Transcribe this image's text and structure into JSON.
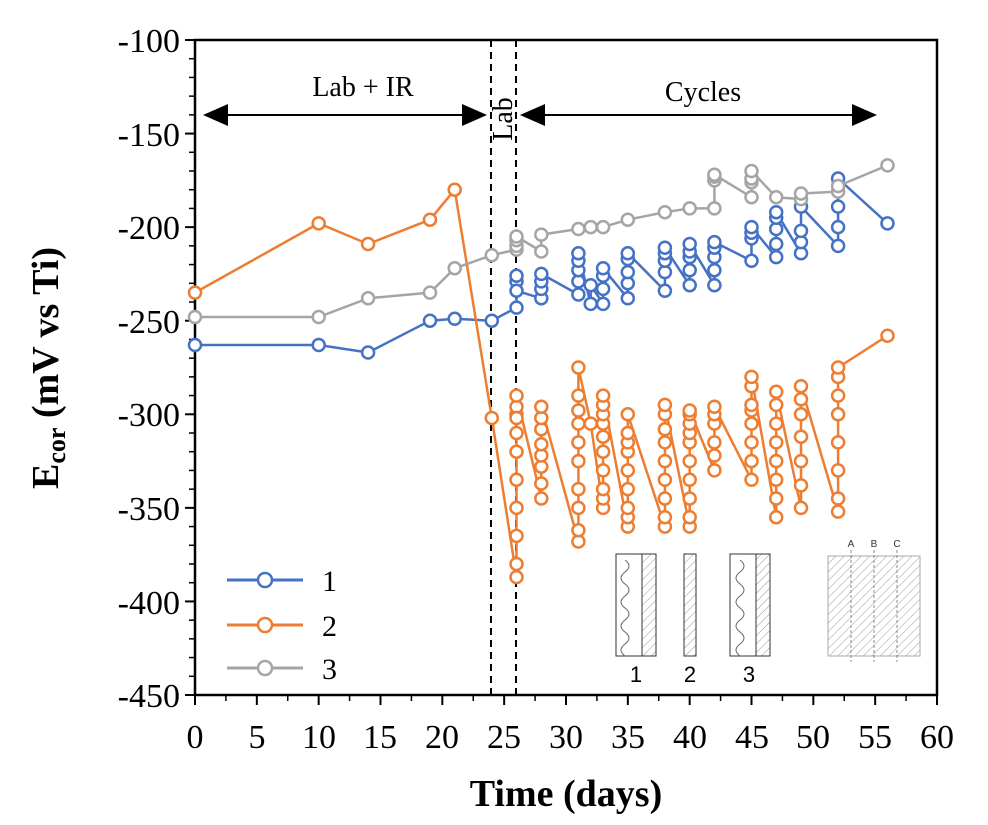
{
  "chart_data": {
    "type": "line",
    "title": "",
    "xlabel": "Time (days)",
    "ylabel": "E",
    "ylabel_sub": "cor",
    "ylabel_rest": " (mV vs Ti)",
    "xlim": [
      0,
      60
    ],
    "ylim": [
      -450,
      -100
    ],
    "xticks": [
      "0",
      "5",
      "10",
      "15",
      "20",
      "25",
      "30",
      "35",
      "40",
      "45",
      "50",
      "55",
      "60"
    ],
    "yticks": [
      "-100",
      "-150",
      "-200",
      "-250",
      "-300",
      "-350",
      "-400",
      "-450"
    ],
    "grid": false,
    "legend_position": "bottom-left",
    "annotations": {
      "lab_ir": "Lab + IR",
      "lab": "Lab",
      "cycles": "Cycles",
      "vlines": [
        24,
        26
      ]
    },
    "inset": {
      "labels": [
        "1",
        "2",
        "3"
      ],
      "section_labels": [
        "A",
        "B",
        "C"
      ]
    },
    "series": [
      {
        "name": "1",
        "color": "#4472C4",
        "x": [
          0,
          10,
          14,
          19,
          21,
          24,
          26,
          26,
          26,
          26,
          28,
          28,
          28,
          28,
          31,
          31,
          31,
          31,
          31,
          32,
          32,
          33,
          33,
          33,
          33,
          35,
          35,
          35,
          35,
          35,
          38,
          38,
          38,
          38,
          38,
          40,
          40,
          40,
          40,
          40,
          42,
          42,
          42,
          42,
          42,
          45,
          45,
          45,
          45,
          47,
          47,
          47,
          47,
          47,
          49,
          49,
          49,
          49,
          52,
          52,
          52,
          52,
          56
        ],
        "y": [
          -263,
          -263,
          -267,
          -250,
          -249,
          -250,
          -243,
          -229,
          -226,
          -234,
          -238,
          -233,
          -229,
          -225,
          -236,
          -229,
          -223,
          -218,
          -214,
          -241,
          -231,
          -241,
          -233,
          -226,
          -222,
          -238,
          -230,
          -224,
          -217,
          -214,
          -234,
          -224,
          -218,
          -214,
          -211,
          -231,
          -223,
          -216,
          -213,
          -209,
          -231,
          -223,
          -216,
          -211,
          -208,
          -218,
          -206,
          -203,
          -200,
          -216,
          -209,
          -201,
          -195,
          -192,
          -214,
          -208,
          -202,
          -189,
          -210,
          -200,
          -189,
          -174,
          -198
        ]
      },
      {
        "name": "2",
        "color": "#ED7D31",
        "x": [
          0,
          10,
          14,
          19,
          21,
          24,
          26,
          26,
          26,
          26,
          26,
          26,
          26,
          26,
          26,
          26,
          26,
          28,
          28,
          28,
          28,
          28,
          28,
          28,
          28,
          31,
          31,
          31,
          31,
          31,
          31,
          31,
          31,
          31,
          31,
          32,
          33,
          33,
          33,
          33,
          33,
          33,
          33,
          33,
          33,
          33,
          35,
          35,
          35,
          35,
          35,
          35,
          35,
          35,
          35,
          38,
          38,
          38,
          38,
          38,
          38,
          38,
          38,
          38,
          40,
          40,
          40,
          40,
          40,
          40,
          40,
          40,
          40,
          40,
          42,
          42,
          42,
          42,
          42,
          42,
          45,
          45,
          45,
          45,
          45,
          45,
          45,
          45,
          47,
          47,
          47,
          47,
          47,
          47,
          47,
          47,
          49,
          49,
          49,
          49,
          49,
          49,
          49,
          52,
          52,
          52,
          52,
          52,
          52,
          52,
          52,
          56
        ],
        "y": [
          -235,
          -198,
          -209,
          -196,
          -180,
          -302,
          -387,
          -380,
          -365,
          -350,
          -335,
          -320,
          -310,
          -300,
          -296,
          -302,
          -290,
          -345,
          -337,
          -328,
          -322,
          -316,
          -308,
          -302,
          -296,
          -368,
          -362,
          -350,
          -340,
          -325,
          -315,
          -305,
          -298,
          -290,
          -275,
          -305,
          -350,
          -345,
          -340,
          -330,
          -320,
          -312,
          -305,
          -300,
          -295,
          -290,
          -360,
          -355,
          -350,
          -340,
          -330,
          -320,
          -315,
          -310,
          -300,
          -360,
          -355,
          -345,
          -335,
          -325,
          -315,
          -308,
          -300,
          -295,
          -360,
          -355,
          -345,
          -335,
          -325,
          -315,
          -310,
          -305,
          -300,
          -298,
          -330,
          -322,
          -315,
          -305,
          -300,
          -296,
          -335,
          -325,
          -315,
          -305,
          -298,
          -295,
          -285,
          -280,
          -355,
          -345,
          -335,
          -325,
          -315,
          -305,
          -295,
          -288,
          -350,
          -338,
          -325,
          -312,
          -300,
          -292,
          -285,
          -352,
          -345,
          -330,
          -315,
          -300,
          -290,
          -280,
          -275,
          -258
        ]
      },
      {
        "name": "3",
        "color": "#A5A5A5",
        "x": [
          0,
          10,
          14,
          19,
          21,
          24,
          26,
          26,
          26,
          26,
          28,
          28,
          31,
          32,
          33,
          35,
          38,
          40,
          42,
          42,
          42,
          42,
          45,
          45,
          45,
          45,
          47,
          49,
          49,
          52,
          52,
          56
        ],
        "y": [
          -248,
          -248,
          -238,
          -235,
          -222,
          -215,
          -212,
          -210,
          -207,
          -205,
          -213,
          -204,
          -201,
          -200,
          -200,
          -196,
          -192,
          -190,
          -190,
          -175,
          -173,
          -172,
          -184,
          -176,
          -174,
          -170,
          -184,
          -185,
          -182,
          -181,
          -178,
          -167
        ]
      }
    ]
  }
}
